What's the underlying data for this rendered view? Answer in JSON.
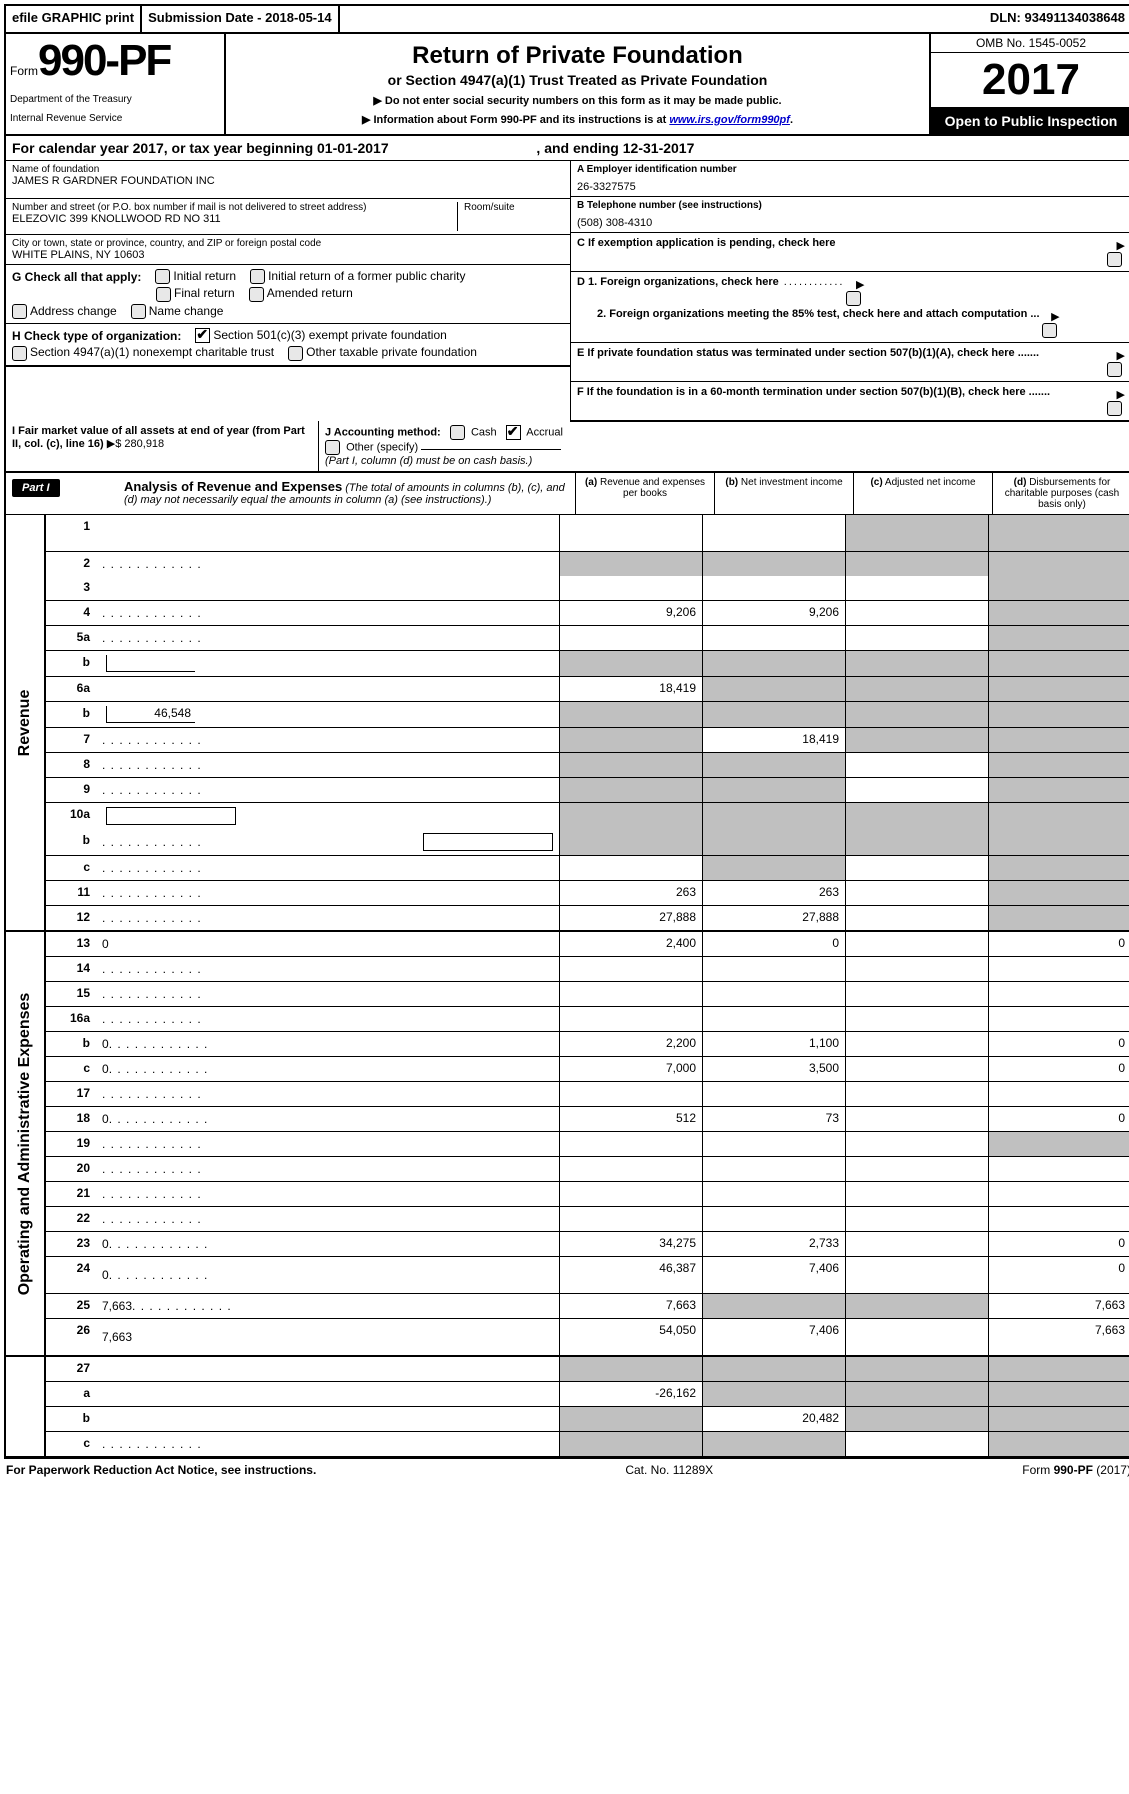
{
  "top": {
    "efile": "efile GRAPHIC print",
    "submission": "Submission Date - 2018-05-14",
    "dln": "DLN: 93491134038648"
  },
  "header": {
    "form_word": "Form",
    "form_num": "990-PF",
    "dept1": "Department of the Treasury",
    "dept2": "Internal Revenue Service",
    "title": "Return of Private Foundation",
    "sub": "or Section 4947(a)(1) Trust Treated as Private Foundation",
    "notice1": "▶ Do not enter social security numbers on this form as it may be made public.",
    "notice2_pre": "▶ Information about Form 990-PF and its instructions is at ",
    "notice2_link": "www.irs.gov/form990pf",
    "omb": "OMB No. 1545-0052",
    "year": "2017",
    "open": "Open to Public Inspection"
  },
  "cal_year": {
    "pre": "For calendar year 2017, or tax year beginning ",
    "begin": "01-01-2017",
    "mid": " , and ending ",
    "end": "12-31-2017"
  },
  "name": {
    "label": "Name of foundation",
    "value": "JAMES R GARDNER FOUNDATION INC"
  },
  "ein": {
    "label": "A Employer identification number",
    "value": "26-3327575"
  },
  "addr": {
    "label": "Number and street (or P.O. box number if mail is not delivered to street address)",
    "value": "ELEZOVIC 399 KNOLLWOOD RD NO 311",
    "room": "Room/suite"
  },
  "tel": {
    "label": "B Telephone number (see instructions)",
    "value": "(508) 308-4310"
  },
  "city": {
    "label": "City or town, state or province, country, and ZIP or foreign postal code",
    "value": "WHITE PLAINS, NY  10603"
  },
  "boxc": "C If exemption application is pending, check here",
  "g": {
    "label": "G Check all that apply:",
    "opts": [
      "Initial return",
      "Initial return of a former public charity",
      "Final return",
      "Amended return",
      "Address change",
      "Name change"
    ]
  },
  "h": {
    "label": "H Check type of organization:",
    "opt1": "Section 501(c)(3) exempt private foundation",
    "opt2": "Section 4947(a)(1) nonexempt charitable trust",
    "opt3": "Other taxable private foundation"
  },
  "d": {
    "line1": "D 1. Foreign organizations, check here",
    "line2": "2. Foreign organizations meeting the 85% test, check here and attach computation ..."
  },
  "e": "E  If private foundation status was terminated under section 507(b)(1)(A), check here .......",
  "f": "F  If the foundation is in a 60-month termination under section 507(b)(1)(B), check here .......",
  "i": {
    "label": "I Fair market value of all assets at end of year (from Part II, col. (c), line 16)",
    "arrow": "▶$",
    "value": "280,918"
  },
  "j": {
    "label": "J Accounting method:",
    "cash": "Cash",
    "accrual": "Accrual",
    "other": "Other (specify)",
    "note": "(Part I, column (d) must be on cash basis.)"
  },
  "part1": {
    "chip": "Part I",
    "title": "Analysis of Revenue and Expenses",
    "sub": "(The total of amounts in columns (b), (c), and (d) may not necessarily equal the amounts in column (a) (see instructions).)",
    "cols": {
      "a": {
        "l": "(a)",
        "t": "Revenue and expenses per books"
      },
      "b": {
        "l": "(b)",
        "t": "Net investment income"
      },
      "c": {
        "l": "(c)",
        "t": "Adjusted net income"
      },
      "d": {
        "l": "(d)",
        "t": "Disbursements for charitable purposes (cash basis only)"
      }
    }
  },
  "side": {
    "rev": "Revenue",
    "exp": "Operating and Administrative Expenses"
  },
  "rows": [
    {
      "n": "1",
      "d": "",
      "a": "",
      "b": "",
      "c": "",
      "cg": true,
      "dg": true,
      "tall": true
    },
    {
      "n": "2",
      "d": "",
      "dots": true,
      "a": "",
      "b": "",
      "c": "",
      "ag": true,
      "bg": true,
      "cg": true,
      "dg": true,
      "nob": true
    },
    {
      "n": "3",
      "d": "",
      "a": "",
      "b": "",
      "c": "",
      "dg": true
    },
    {
      "n": "4",
      "d": "",
      "dots": true,
      "a": "9,206",
      "b": "9,206",
      "c": "",
      "dg": true
    },
    {
      "n": "5a",
      "d": "",
      "dots": true,
      "a": "",
      "b": "",
      "c": "",
      "dg": true
    },
    {
      "n": "b",
      "d": "",
      "box": " ",
      "a": "",
      "b": "",
      "c": "",
      "ag": true,
      "bg": true,
      "cg": true,
      "dg": true
    },
    {
      "n": "6a",
      "d": "",
      "a": "18,419",
      "b": "",
      "c": "",
      "bg": true,
      "cg": true,
      "dg": true
    },
    {
      "n": "b",
      "d": "",
      "box": "46,548",
      "a": "",
      "b": "",
      "c": "",
      "ag": true,
      "bg": true,
      "cg": true,
      "dg": true
    },
    {
      "n": "7",
      "d": "",
      "dots": true,
      "a": "",
      "b": "18,419",
      "c": "",
      "ag": true,
      "cg": true,
      "dg": true
    },
    {
      "n": "8",
      "d": "",
      "dots": true,
      "a": "",
      "b": "",
      "c": "",
      "ag": true,
      "bg": true,
      "dg": true
    },
    {
      "n": "9",
      "d": "",
      "dots": true,
      "a": "",
      "b": "",
      "c": "",
      "ag": true,
      "bg": true,
      "dg": true
    },
    {
      "n": "10a",
      "d": "",
      "boxfull": " ",
      "a": "",
      "b": "",
      "c": "",
      "ag": true,
      "bg": true,
      "cg": true,
      "dg": true,
      "nob": true
    },
    {
      "n": "b",
      "d": "",
      "dots": true,
      "boxfull": " ",
      "a": "",
      "b": "",
      "c": "",
      "ag": true,
      "bg": true,
      "cg": true,
      "dg": true
    },
    {
      "n": "c",
      "d": "",
      "dots": true,
      "a": "",
      "b": "",
      "c": "",
      "bg": true,
      "dg": true
    },
    {
      "n": "11",
      "d": "",
      "dots": true,
      "a": "263",
      "b": "263",
      "c": "",
      "dg": true
    },
    {
      "n": "12",
      "d": "",
      "dots": true,
      "a": "27,888",
      "b": "27,888",
      "c": "",
      "dg": true
    }
  ],
  "exp_rows": [
    {
      "n": "13",
      "d": "0",
      "a": "2,400",
      "b": "0",
      "c": ""
    },
    {
      "n": "14",
      "d": "",
      "dots": true,
      "a": "",
      "b": "",
      "c": ""
    },
    {
      "n": "15",
      "d": "",
      "dots": true,
      "a": "",
      "b": "",
      "c": ""
    },
    {
      "n": "16a",
      "d": "",
      "dots": true,
      "a": "",
      "b": "",
      "c": ""
    },
    {
      "n": "b",
      "d": "0",
      "dots": true,
      "a": "2,200",
      "b": "1,100",
      "c": ""
    },
    {
      "n": "c",
      "d": "0",
      "dots": true,
      "a": "7,000",
      "b": "3,500",
      "c": ""
    },
    {
      "n": "17",
      "d": "",
      "dots": true,
      "a": "",
      "b": "",
      "c": ""
    },
    {
      "n": "18",
      "d": "0",
      "dots": true,
      "a": "512",
      "b": "73",
      "c": ""
    },
    {
      "n": "19",
      "d": "",
      "dots": true,
      "a": "",
      "b": "",
      "c": "",
      "dg": true
    },
    {
      "n": "20",
      "d": "",
      "dots": true,
      "a": "",
      "b": "",
      "c": ""
    },
    {
      "n": "21",
      "d": "",
      "dots": true,
      "a": "",
      "b": "",
      "c": ""
    },
    {
      "n": "22",
      "d": "",
      "dots": true,
      "a": "",
      "b": "",
      "c": ""
    },
    {
      "n": "23",
      "d": "0",
      "dots": true,
      "a": "34,275",
      "b": "2,733",
      "c": ""
    },
    {
      "n": "24",
      "d": "0",
      "dots": true,
      "a": "46,387",
      "b": "7,406",
      "c": "",
      "tall": true
    },
    {
      "n": "25",
      "d": "7,663",
      "dots": true,
      "a": "7,663",
      "b": "",
      "c": "",
      "bg": true,
      "cg": true
    },
    {
      "n": "26",
      "d": "7,663",
      "a": "54,050",
      "b": "7,406",
      "c": "",
      "tall": true
    }
  ],
  "bottom_rows": [
    {
      "n": "27",
      "d": "",
      "a": "",
      "b": "",
      "c": "",
      "ag": true,
      "bg": true,
      "cg": true,
      "dg": true
    },
    {
      "n": "a",
      "d": "",
      "a": "-26,162",
      "b": "",
      "c": "",
      "bg": true,
      "cg": true,
      "dg": true
    },
    {
      "n": "b",
      "d": "",
      "a": "",
      "b": "20,482",
      "c": "",
      "ag": true,
      "cg": true,
      "dg": true
    },
    {
      "n": "c",
      "d": "",
      "dots": true,
      "a": "",
      "b": "",
      "c": "",
      "ag": true,
      "bg": true,
      "dg": true
    }
  ],
  "footer": {
    "left": "For Paperwork Reduction Act Notice, see instructions.",
    "mid": "Cat. No. 11289X",
    "right": "Form 990-PF (2017)"
  },
  "colors": {
    "grey": "#c0c0c0",
    "black": "#000000",
    "link": "#0000cc"
  }
}
